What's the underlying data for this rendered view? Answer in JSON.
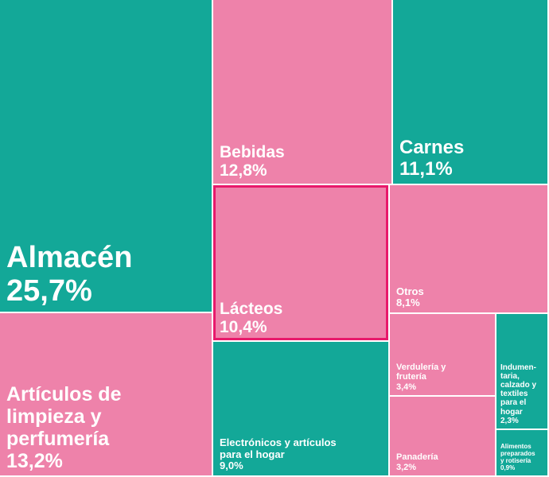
{
  "colors": {
    "teal": "#13a898",
    "pink": "#ee82aa",
    "highlight": "#e8196b"
  },
  "chart_data": {
    "type": "treemap",
    "title": "",
    "items": [
      {
        "id": "almacen",
        "name": "Almacén",
        "pct_label": "25,7%",
        "value": 25.7,
        "color": "teal"
      },
      {
        "id": "articulos-limpieza",
        "name": "Artículos de limpieza y perfumería",
        "pct_label": "13,2%",
        "value": 13.2,
        "color": "pink"
      },
      {
        "id": "bebidas",
        "name": "Bebidas",
        "pct_label": "12,8%",
        "value": 12.8,
        "color": "pink"
      },
      {
        "id": "carnes",
        "name": "Carnes",
        "pct_label": "11,1%",
        "value": 11.1,
        "color": "teal"
      },
      {
        "id": "lacteos",
        "name": "Lácteos",
        "pct_label": "10,4%",
        "value": 10.4,
        "color": "pink",
        "highlighted": true
      },
      {
        "id": "electronicos",
        "name": "Electrónicos y artículos para el hogar",
        "pct_label": "9,0%",
        "value": 9.0,
        "color": "teal"
      },
      {
        "id": "otros",
        "name": "Otros",
        "pct_label": "8,1%",
        "value": 8.1,
        "color": "pink"
      },
      {
        "id": "verduleria",
        "name": "Verdulería y frutería",
        "pct_label": "3,4%",
        "value": 3.4,
        "color": "pink"
      },
      {
        "id": "panaderia",
        "name": "Panadería",
        "pct_label": "3,2%",
        "value": 3.2,
        "color": "pink"
      },
      {
        "id": "indumentaria",
        "name": "Indumen-taria, calzado y textiles para el hogar",
        "pct_label": "2,3%",
        "value": 2.3,
        "color": "teal"
      },
      {
        "id": "alimentos-preparados",
        "name": "Alimentos preparados y rotisería",
        "pct_label": "0,9%",
        "value": 0.9,
        "color": "teal"
      }
    ]
  }
}
